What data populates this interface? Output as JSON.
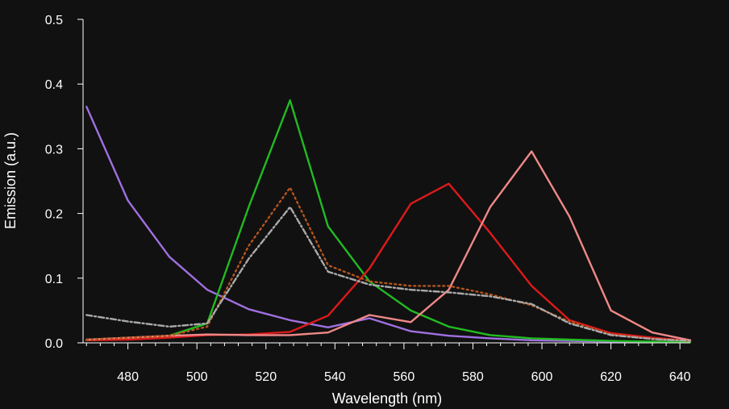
{
  "chart_data": {
    "type": "line",
    "title": "",
    "xlabel": "Wavelength (nm)",
    "ylabel": "Emission (a.u.)",
    "xlim": [
      467,
      643
    ],
    "ylim": [
      0,
      0.5
    ],
    "xticks": [
      480,
      500,
      520,
      540,
      560,
      580,
      600,
      620,
      640
    ],
    "yticks": [
      0.0,
      0.1,
      0.2,
      0.3,
      0.4,
      0.5
    ],
    "xtick_labels": [
      "480",
      "500",
      "520",
      "540",
      "560",
      "580",
      "600",
      "620",
      "640"
    ],
    "ytick_labels": [
      "0.0",
      "0.1",
      "0.2",
      "0.3",
      "0.4",
      "0.5"
    ],
    "x": [
      468,
      480,
      492,
      503,
      515,
      527,
      538,
      550,
      562,
      573,
      585,
      597,
      608,
      620,
      632,
      643
    ],
    "series": [
      {
        "name": "purple",
        "color": "#a070e0",
        "dash": "solid",
        "values": [
          0.365,
          0.22,
          0.133,
          0.082,
          0.052,
          0.035,
          0.024,
          0.038,
          0.018,
          0.011,
          0.007,
          0.004,
          0.003,
          0.002,
          0.002,
          0.002
        ]
      },
      {
        "name": "green",
        "color": "#22bb22",
        "dash": "solid",
        "values": [
          0.004,
          0.006,
          0.011,
          0.03,
          0.21,
          0.375,
          0.18,
          0.095,
          0.05,
          0.025,
          0.012,
          0.007,
          0.005,
          0.003,
          0.002,
          0.001
        ]
      },
      {
        "name": "red",
        "color": "#dd1a1a",
        "dash": "solid",
        "values": [
          0.004,
          0.005,
          0.008,
          0.012,
          0.013,
          0.017,
          0.042,
          0.115,
          0.215,
          0.246,
          0.17,
          0.088,
          0.035,
          0.015,
          0.008,
          0.003
        ]
      },
      {
        "name": "pink",
        "color": "#f08888",
        "dash": "solid",
        "values": [
          0.005,
          0.008,
          0.011,
          0.013,
          0.012,
          0.012,
          0.016,
          0.043,
          0.032,
          0.082,
          0.21,
          0.296,
          0.195,
          0.05,
          0.016,
          0.004
        ]
      },
      {
        "name": "brown-dotted",
        "color": "#b5541c",
        "dash": "dotted",
        "values": [
          0.005,
          0.008,
          0.011,
          0.025,
          0.15,
          0.24,
          0.12,
          0.095,
          0.088,
          0.088,
          0.075,
          0.058,
          0.033,
          0.013,
          0.006,
          0.003
        ]
      },
      {
        "name": "grey-dashed",
        "color": "#aaaaaa",
        "dash": "dashdot",
        "values": [
          0.043,
          0.033,
          0.025,
          0.03,
          0.13,
          0.21,
          0.11,
          0.09,
          0.082,
          0.078,
          0.072,
          0.06,
          0.03,
          0.012,
          0.006,
          0.003
        ]
      }
    ]
  }
}
